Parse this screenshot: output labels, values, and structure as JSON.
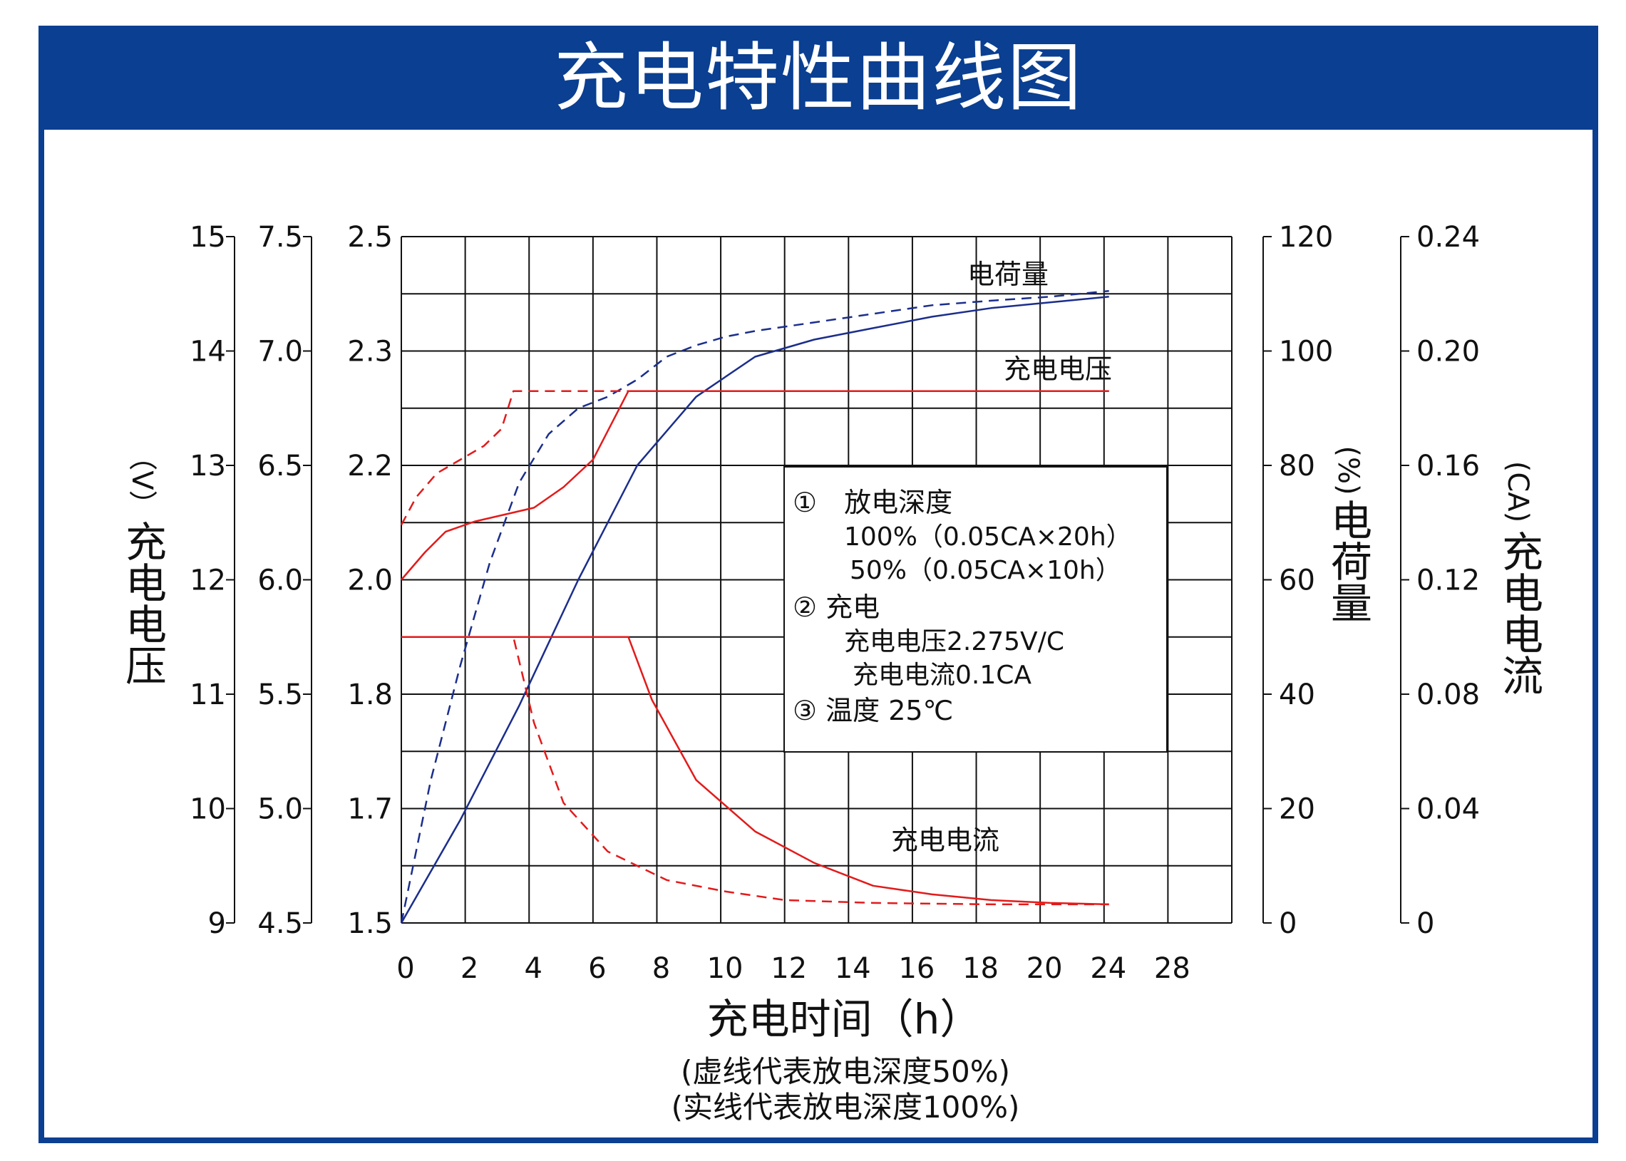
{
  "page": {
    "title": "充电特性曲线图",
    "colors": {
      "banner": "#0A3F91",
      "frame": "#0A3F91",
      "red": "#E21B1B",
      "blue": "#1B2E8C",
      "grid": "#111111"
    }
  },
  "chart_data": {
    "type": "line",
    "x": {
      "label": "充电时间（h）",
      "range": [
        0,
        26
      ],
      "grid_step": 2,
      "tick_labels": [
        "0",
        "2",
        "4",
        "6",
        "8",
        "10",
        "12",
        "14",
        "16",
        "18",
        "20",
        "24",
        "28"
      ]
    },
    "y_axes": [
      {
        "id": "v12",
        "label": "充电电压",
        "unit": "（V）",
        "range": [
          9,
          15
        ],
        "tick_labels": [
          "9",
          "10",
          "11",
          "12",
          "13",
          "14",
          "15"
        ]
      },
      {
        "id": "v6",
        "label": "",
        "unit": "",
        "range": [
          4.5,
          7.5
        ],
        "tick_labels": [
          "4.5",
          "5.0",
          "5.5",
          "6.0",
          "6.5",
          "7.0",
          "7.5"
        ]
      },
      {
        "id": "vcell",
        "label": "",
        "unit": "",
        "range": [
          1.5,
          2.5
        ],
        "tick_labels": [
          "1.5",
          "1.7",
          "1.8",
          "2.0",
          "2.2",
          "2.3",
          "2.5"
        ]
      },
      {
        "id": "charge",
        "label": "电荷量",
        "unit": "(%)",
        "range": [
          0,
          120
        ],
        "tick_labels": [
          "0",
          "20",
          "40",
          "60",
          "80",
          "100",
          "120"
        ]
      },
      {
        "id": "current",
        "label": "充电电流",
        "unit": "(CA)",
        "range": [
          0,
          0.24
        ],
        "tick_labels": [
          "0",
          "0.04",
          "0.08",
          "0.12",
          "0.16",
          "0.20",
          "0.24"
        ]
      }
    ],
    "curve_labels": [
      "电荷量",
      "充电电压",
      "充电电流"
    ],
    "series": [
      {
        "axis": "charge",
        "style": "solid",
        "color": "#1B2E8C",
        "points": [
          [
            0,
            0
          ],
          [
            2,
            18
          ],
          [
            4,
            38
          ],
          [
            6,
            60
          ],
          [
            8,
            80
          ],
          [
            10,
            92
          ],
          [
            12,
            99
          ],
          [
            14,
            102
          ],
          [
            16,
            104
          ],
          [
            18,
            106
          ],
          [
            20,
            107.5
          ],
          [
            22,
            108.5
          ],
          [
            24,
            109.5
          ]
        ]
      },
      {
        "axis": "charge",
        "style": "dashed",
        "color": "#1B2E8C",
        "points": [
          [
            0,
            0
          ],
          [
            1,
            25
          ],
          [
            2,
            45
          ],
          [
            3,
            63
          ],
          [
            4,
            77
          ],
          [
            5,
            85.5
          ],
          [
            6,
            90
          ],
          [
            7,
            92
          ],
          [
            8,
            95
          ],
          [
            9,
            99
          ],
          [
            10,
            101
          ],
          [
            11,
            102.5
          ],
          [
            12,
            103.5
          ],
          [
            14,
            105
          ],
          [
            16,
            106.5
          ],
          [
            18,
            108
          ],
          [
            20,
            108.8
          ],
          [
            22,
            109.5
          ],
          [
            24,
            110.5
          ]
        ]
      },
      {
        "axis": "vcell",
        "style": "solid",
        "color": "#E21B1B",
        "points": [
          [
            0,
            2.0
          ],
          [
            0.8,
            2.04
          ],
          [
            1.5,
            2.07
          ],
          [
            2.5,
            2.085
          ],
          [
            3.5,
            2.095
          ],
          [
            4.5,
            2.105
          ],
          [
            5.5,
            2.135
          ],
          [
            6.5,
            2.175
          ],
          [
            7.7,
            2.275
          ],
          [
            24,
            2.275
          ]
        ]
      },
      {
        "axis": "vcell",
        "style": "dashed",
        "color": "#E21B1B",
        "points": [
          [
            0,
            2.08
          ],
          [
            0.5,
            2.12
          ],
          [
            1.2,
            2.155
          ],
          [
            2,
            2.175
          ],
          [
            2.8,
            2.195
          ],
          [
            3.4,
            2.22
          ],
          [
            3.8,
            2.275
          ],
          [
            24,
            2.275
          ]
        ]
      },
      {
        "axis": "current",
        "style": "solid",
        "color": "#E21B1B",
        "points": [
          [
            0,
            0.1
          ],
          [
            7.7,
            0.1
          ],
          [
            8.5,
            0.078
          ],
          [
            10,
            0.05
          ],
          [
            12,
            0.032
          ],
          [
            14,
            0.021
          ],
          [
            16,
            0.013
          ],
          [
            18,
            0.01
          ],
          [
            20,
            0.008
          ],
          [
            22,
            0.007
          ],
          [
            24,
            0.0065
          ]
        ]
      },
      {
        "axis": "current",
        "style": "dashed",
        "color": "#E21B1B",
        "points": [
          [
            0,
            0.1
          ],
          [
            3.8,
            0.1
          ],
          [
            4.5,
            0.07
          ],
          [
            5.5,
            0.042
          ],
          [
            7,
            0.025
          ],
          [
            9,
            0.015
          ],
          [
            11,
            0.011
          ],
          [
            13,
            0.008
          ],
          [
            16,
            0.007
          ],
          [
            20,
            0.0065
          ],
          [
            24,
            0.0065
          ]
        ]
      }
    ],
    "legend": {
      "lines": [
        "①　放电深度",
        "100%（0.05CA×20h）",
        "50%（0.05CA×10h）",
        "②  充电",
        "充电电压2.275V/C",
        "充电电流0.1CA",
        "③  温度 25℃"
      ]
    },
    "notes": [
      "(虚线代表放电深度50%)",
      "(实线代表放电深度100%)"
    ],
    "grid": true
  }
}
